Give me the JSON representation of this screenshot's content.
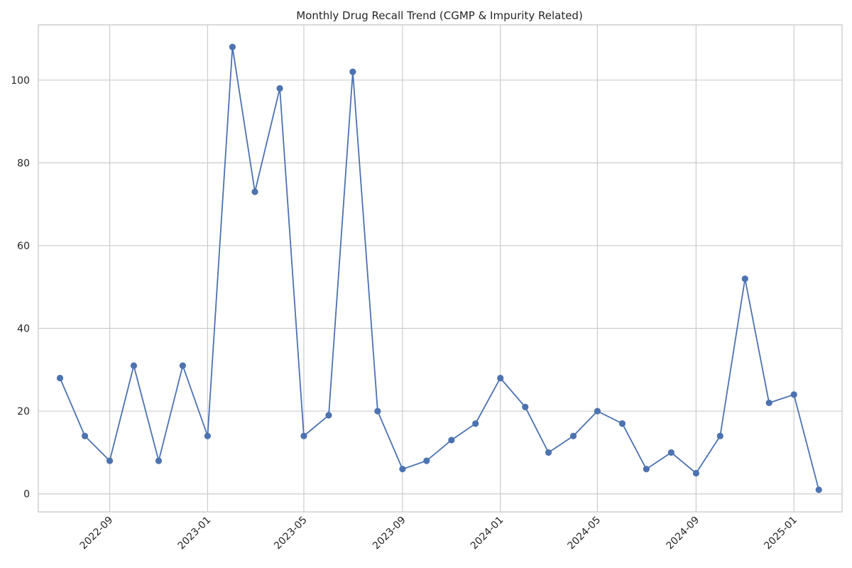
{
  "chart_data": {
    "type": "line",
    "title": "Monthly Drug Recall Trend (CGMP & Impurity Related)",
    "xlabel": "",
    "ylabel": "",
    "x": [
      "2022-07",
      "2022-08",
      "2022-09",
      "2022-10",
      "2022-11",
      "2022-12",
      "2023-01",
      "2023-02",
      "2023-03",
      "2023-04",
      "2023-05",
      "2023-06",
      "2023-07",
      "2023-08",
      "2023-09",
      "2023-10",
      "2023-11",
      "2023-12",
      "2024-01",
      "2024-02",
      "2024-03",
      "2024-04",
      "2024-05",
      "2024-06",
      "2024-07",
      "2024-08",
      "2024-09",
      "2024-10",
      "2024-11",
      "2024-12",
      "2025-01",
      "2025-02"
    ],
    "series": [
      {
        "values": [
          28,
          14,
          8,
          31,
          8,
          31,
          14,
          108,
          73,
          98,
          14,
          19,
          102,
          20,
          6,
          8,
          13,
          17,
          28,
          21,
          10,
          14,
          20,
          17,
          6,
          10,
          5,
          14,
          52,
          22,
          24,
          1
        ],
        "color": "#4c72b0"
      }
    ],
    "x_ticks": [
      "2022-09",
      "2023-01",
      "2023-05",
      "2023-09",
      "2024-01",
      "2024-05",
      "2024-09",
      "2025-01"
    ],
    "y_ticks": [
      0,
      20,
      40,
      60,
      80,
      100
    ],
    "ylim": [
      -4.35,
      113.35
    ],
    "xlim": [
      "2022-06-04",
      "2025-03-02"
    ],
    "grid": true,
    "legend": "none",
    "marker": "circle"
  }
}
